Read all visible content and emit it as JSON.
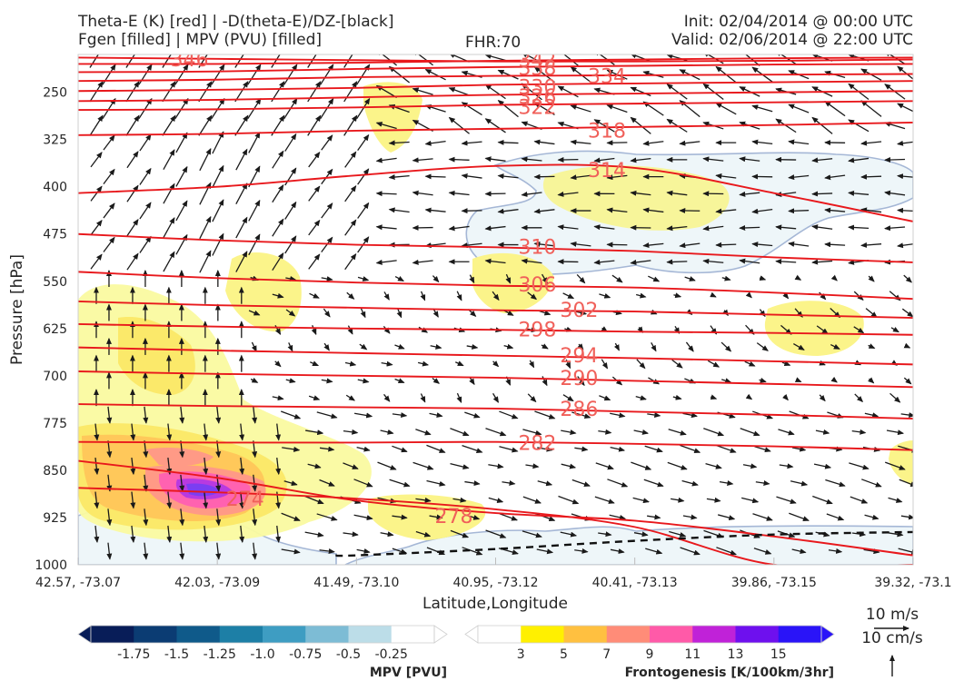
{
  "header": {
    "left_line1": "Theta-E (K) [red] | -D(theta-E)/DZ-[black]",
    "left_line2": "Fgen [filled] | MPV (PVU) [filled]",
    "center": "FHR:70",
    "right_line1": "Init: 02/04/2014 @ 00:00 UTC",
    "right_line2": "Valid: 02/06/2014 @ 22:00 UTC"
  },
  "chart_data": {
    "type": "cross-section",
    "xlabel": "Latitude,Longitude",
    "ylabel": "Pressure [hPa]",
    "y_scale": "linear, inverted",
    "ylim": [
      1000,
      190
    ],
    "y_ticks": [
      250,
      325,
      400,
      475,
      550,
      625,
      700,
      775,
      850,
      925,
      1000
    ],
    "x_ticks": [
      "42.57, -73.07",
      "42.03, -73.09",
      "41.49, -73.10",
      "40.95, -73.12",
      "40.41, -73.13",
      "39.86, -73.15",
      "39.32, -73.1"
    ],
    "theta_e_contours": [
      {
        "label": "346",
        "p": [
          195,
          197,
          199,
          201,
          201,
          200,
          198
        ],
        "label_at": [
          0.8,
          197
        ]
      },
      {
        "label": "342",
        "p": [
          205,
          205,
          203,
          200,
          198,
          196,
          195
        ],
        "label_at": [
          3.3,
          198
        ]
      },
      {
        "label": "338",
        "p": [
          218,
          217,
          213,
          210,
          208,
          206,
          205
        ],
        "label_at": [
          3.3,
          211
        ]
      },
      {
        "label": "334",
        "p": [
          232,
          230,
          226,
          224,
          223,
          222,
          221
        ],
        "label_at": [
          3.8,
          224
        ]
      },
      {
        "label": "330",
        "p": [
          248,
          246,
          243,
          238,
          236,
          234,
          232
        ],
        "label_at": [
          3.3,
          241
        ]
      },
      {
        "label": "326",
        "p": [
          264,
          262,
          258,
          254,
          252,
          250,
          248
        ],
        "label_at": [
          3.3,
          256
        ]
      },
      {
        "label": "322",
        "p": [
          278,
          277,
          274,
          270,
          268,
          266,
          264
        ],
        "label_at": [
          3.3,
          273
        ]
      },
      {
        "label": "318",
        "p": [
          318,
          316,
          311,
          308,
          305,
          302,
          298
        ],
        "label_at": [
          3.8,
          310
        ]
      },
      {
        "label": "314",
        "p": [
          410,
          400,
          382,
          367,
          370,
          410,
          455
        ],
        "label_at": [
          3.8,
          373
        ]
      },
      {
        "label": "310",
        "p": [
          475,
          485,
          492,
          496,
          502,
          512,
          520
        ],
        "label_at": [
          3.3,
          495
        ]
      },
      {
        "label": "306",
        "p": [
          535,
          545,
          552,
          557,
          560,
          568,
          578
        ],
        "label_at": [
          3.3,
          555
        ]
      },
      {
        "label": "302",
        "p": [
          582,
          588,
          592,
          596,
          598,
          603,
          608
        ],
        "label_at": [
          3.6,
          595
        ]
      },
      {
        "label": "298",
        "p": [
          618,
          622,
          625,
          627,
          630,
          632,
          635
        ],
        "label_at": [
          3.3,
          626
        ]
      },
      {
        "label": "294",
        "p": [
          655,
          660,
          664,
          668,
          672,
          677,
          682
        ],
        "label_at": [
          3.6,
          667
        ]
      },
      {
        "label": "290",
        "p": [
          693,
          697,
          700,
          703,
          708,
          713,
          718
        ],
        "label_at": [
          3.6,
          703
        ]
      },
      {
        "label": "286",
        "p": [
          745,
          748,
          750,
          752,
          757,
          762,
          768
        ],
        "label_at": [
          3.6,
          752
        ]
      },
      {
        "label": "282",
        "p": [
          805,
          806,
          806,
          805,
          808,
          812,
          818
        ],
        "label_at": [
          3.3,
          806
        ]
      },
      {
        "label": "278",
        "p": [
          835,
          862,
          898,
          918,
          930,
          955,
          985
        ],
        "label_at": [
          2.7,
          922
        ]
      },
      {
        "label": "274",
        "p": [
          878,
          885,
          895,
          912,
          940,
          1000,
          1000
        ],
        "label_at": [
          1.2,
          895
        ]
      }
    ],
    "stability_contour_dashed": {
      "p": [
        null,
        null,
        985,
        975,
        962,
        952,
        948
      ],
      "x_start": 1.85
    },
    "colorbars": [
      {
        "title": "MPV [PVU]",
        "ticks": [
          "-1.75",
          "-1.5",
          "-1.25",
          "-1.0",
          "-0.75",
          "-0.5",
          "-0.25"
        ],
        "colors": [
          "#081d58",
          "#0b3c73",
          "#0f5a8a",
          "#1d7fa6",
          "#3e9dc2",
          "#7dbcd5",
          "#bcdde8",
          "#ffffff"
        ]
      },
      {
        "title": "Frontogenesis [K/100km/3hr]",
        "ticks": [
          "3",
          "5",
          "7",
          "9",
          "11",
          "13",
          "15"
        ],
        "colors": [
          "#ffffff",
          "#fff000",
          "#ffc040",
          "#ff8c78",
          "#ff5aa8",
          "#c022d8",
          "#6e10ee",
          "#2a14f8"
        ]
      }
    ],
    "vector_reference": {
      "horizontal": "10 m/s",
      "vertical": "10 cm/s"
    }
  }
}
